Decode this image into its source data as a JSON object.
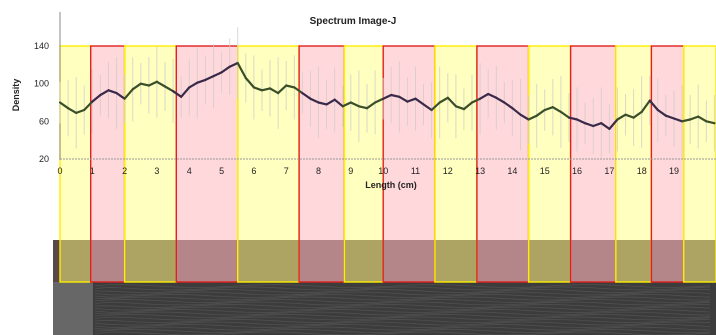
{
  "chart_data": {
    "type": "line",
    "title": "Spectrum Image-J",
    "xlabel": "Length (cm)",
    "ylabel": "Density",
    "xlim": [
      0,
      20.3
    ],
    "ylim": [
      20,
      140
    ],
    "xticks": [
      0,
      1,
      2,
      3,
      4,
      5,
      6,
      7,
      8,
      9,
      10,
      11,
      12,
      13,
      14,
      15,
      16,
      17,
      18,
      19
    ],
    "yticks": [
      20,
      60,
      100,
      140
    ],
    "grid": false,
    "bands": [
      {
        "start": 0.0,
        "end": 0.95,
        "kind": "light"
      },
      {
        "start": 0.95,
        "end": 2.0,
        "kind": "dark"
      },
      {
        "start": 2.0,
        "end": 3.6,
        "kind": "light"
      },
      {
        "start": 3.6,
        "end": 5.5,
        "kind": "dark"
      },
      {
        "start": 5.5,
        "end": 7.4,
        "kind": "light"
      },
      {
        "start": 7.4,
        "end": 8.8,
        "kind": "dark"
      },
      {
        "start": 8.8,
        "end": 10.0,
        "kind": "light"
      },
      {
        "start": 10.0,
        "end": 11.6,
        "kind": "dark"
      },
      {
        "start": 11.6,
        "end": 12.9,
        "kind": "light"
      },
      {
        "start": 12.9,
        "end": 14.5,
        "kind": "dark"
      },
      {
        "start": 14.5,
        "end": 15.8,
        "kind": "light"
      },
      {
        "start": 15.8,
        "end": 17.2,
        "kind": "dark"
      },
      {
        "start": 17.2,
        "end": 18.3,
        "kind": "light"
      },
      {
        "start": 18.3,
        "end": 19.3,
        "kind": "dark"
      },
      {
        "start": 19.3,
        "end": 20.3,
        "kind": "light"
      }
    ],
    "series": [
      {
        "x": [
          0.0,
          0.25,
          0.5,
          0.75,
          1.0,
          1.25,
          1.5,
          1.75,
          2.0,
          2.25,
          2.5,
          2.75,
          3.0,
          3.25,
          3.5,
          3.75,
          4.0,
          4.25,
          4.5,
          4.75,
          5.0,
          5.25,
          5.5,
          5.75,
          6.0,
          6.25,
          6.5,
          6.75,
          7.0,
          7.25,
          7.5,
          7.75,
          8.0,
          8.25,
          8.5,
          8.75,
          9.0,
          9.25,
          9.5,
          9.75,
          10.0,
          10.25,
          10.5,
          10.75,
          11.0,
          11.25,
          11.5,
          11.75,
          12.0,
          12.25,
          12.5,
          12.75,
          13.0,
          13.25,
          13.5,
          13.75,
          14.0,
          14.25,
          14.5,
          14.75,
          15.0,
          15.25,
          15.5,
          15.75,
          16.0,
          16.25,
          16.5,
          16.75,
          17.0,
          17.25,
          17.5,
          17.75,
          18.0,
          18.25,
          18.5,
          18.75,
          19.0,
          19.25,
          19.5,
          19.75,
          20.0,
          20.25
        ],
        "y": [
          80,
          74,
          69,
          72,
          81,
          88,
          93,
          90,
          84,
          94,
          100,
          98,
          102,
          97,
          92,
          86,
          96,
          101,
          104,
          108,
          112,
          118,
          122,
          106,
          96,
          93,
          95,
          90,
          98,
          96,
          90,
          84,
          80,
          78,
          83,
          76,
          80,
          76,
          74,
          80,
          84,
          88,
          86,
          81,
          84,
          78,
          72,
          80,
          85,
          76,
          73,
          80,
          84,
          89,
          85,
          80,
          74,
          67,
          62,
          66,
          72,
          75,
          70,
          64,
          62,
          58,
          55,
          58,
          52,
          62,
          67,
          64,
          70,
          82,
          72,
          66,
          63,
          60,
          62,
          65,
          60,
          58
        ]
      }
    ],
    "strip": {
      "bg": "#3c3c3c",
      "top_band": "#5a4848"
    },
    "colors": {
      "light_fill": "#ffff80",
      "light_stroke": "#ffee00",
      "dark_fill": "#ffb8c0",
      "dark_stroke": "#e02020",
      "line_light_band": "#3a4e2a",
      "line_dark_band": "#3a2a4a",
      "error_bar": "#cccccc"
    }
  }
}
